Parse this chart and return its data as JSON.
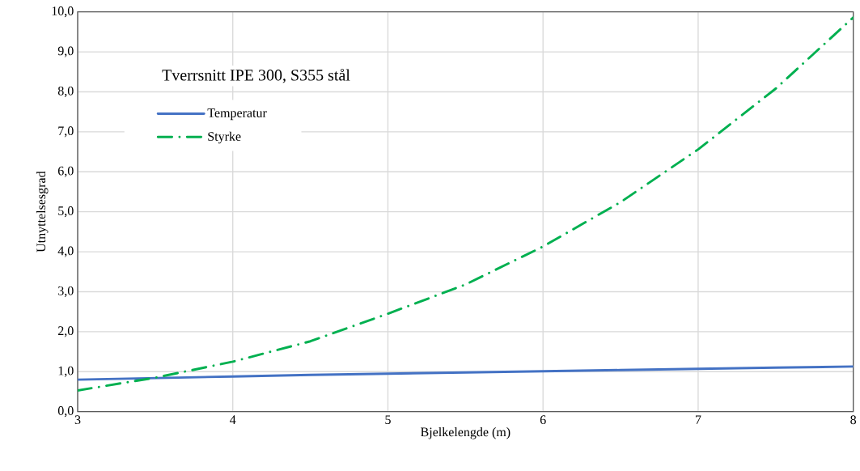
{
  "chart_data": {
    "type": "line",
    "title": "Tverrsnitt IPE 300, S355 stål",
    "xlabel": "Bjelkelengde (m)",
    "ylabel": "Utnyttelsesgrad",
    "x": [
      3,
      3.5,
      4,
      4.5,
      5,
      5.5,
      6,
      6.5,
      7,
      7.5,
      8
    ],
    "series": [
      {
        "name": "Temperatur",
        "color": "#4472c4",
        "line_style": "solid",
        "values": [
          0.8,
          0.84,
          0.88,
          0.92,
          0.95,
          0.98,
          1.01,
          1.04,
          1.07,
          1.1,
          1.13
        ]
      },
      {
        "name": "Styrke",
        "color": "#00b050",
        "line_style": "dashed",
        "values": [
          0.53,
          0.85,
          1.25,
          1.76,
          2.45,
          3.18,
          4.13,
          5.24,
          6.56,
          8.08,
          9.86
        ]
      }
    ],
    "xlim": [
      3,
      8
    ],
    "ylim": [
      0,
      10
    ],
    "xticks": [
      3,
      4,
      5,
      6,
      7,
      8
    ],
    "yticks": [
      {
        "value": 0,
        "label": "0,0"
      },
      {
        "value": 1,
        "label": "1,0"
      },
      {
        "value": 2,
        "label": "2,0"
      },
      {
        "value": 3,
        "label": "3,0"
      },
      {
        "value": 4,
        "label": "4,0"
      },
      {
        "value": 5,
        "label": "5,0"
      },
      {
        "value": 6,
        "label": "6,0"
      },
      {
        "value": 7,
        "label": "7,0"
      },
      {
        "value": 8,
        "label": "8,0"
      },
      {
        "value": 9,
        "label": "9,0"
      },
      {
        "value": 10,
        "label": "10,0"
      }
    ],
    "grid": true,
    "legend": "top left",
    "marker": "none"
  }
}
